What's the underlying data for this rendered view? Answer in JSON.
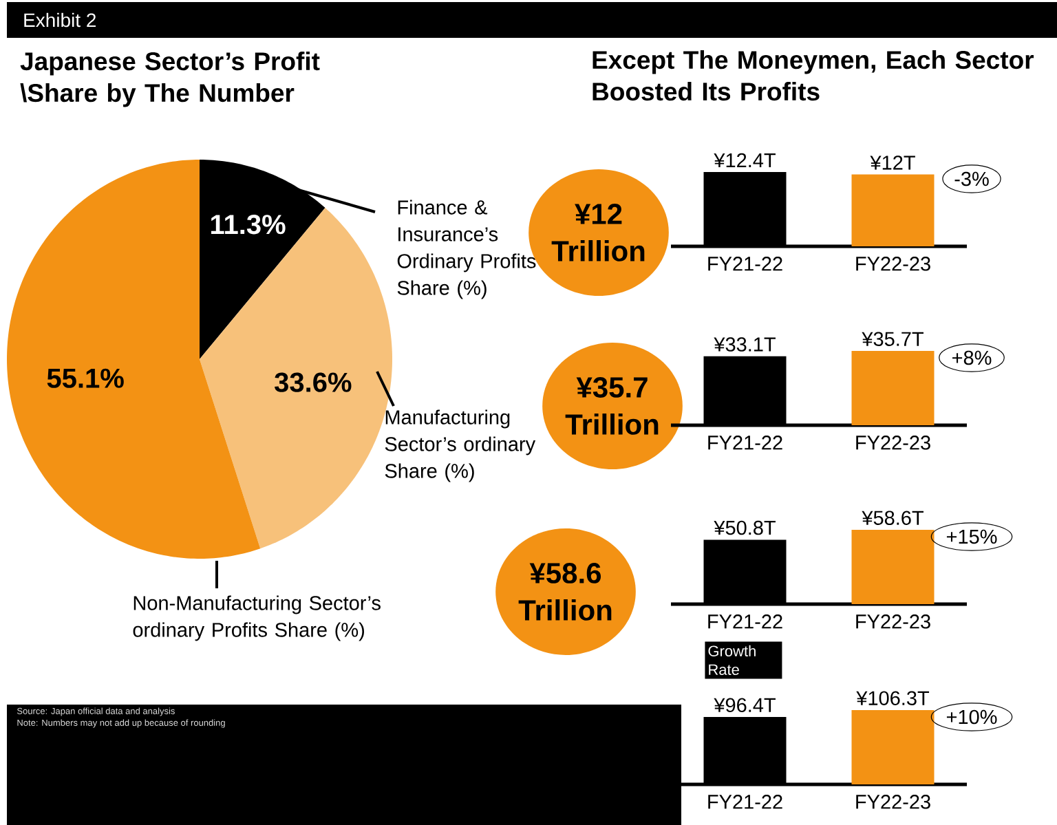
{
  "chart_data": [
    {
      "type": "pie",
      "title": "Japanese Sector’s Profit \\Share by The Number",
      "categories": [
        "Finance & Insurance’s Ordinary Profits Share (%)",
        "Manufacturing Sector’s ordinary Share (%)",
        "Non-Manufacturing Sector’s ordinary Profits Share (%)"
      ],
      "values": [
        11.3,
        33.6,
        55.1
      ],
      "value_labels": [
        "11.3%",
        "33.6%",
        "55.1%"
      ],
      "colors": [
        "#000000",
        "#f7c17a",
        "#f39214"
      ],
      "annotations": [
        "Exhibit 2",
        "Source: Japan official data and analysis",
        "Note: Numbers may not add up because of rounding"
      ]
    },
    {
      "type": "bar",
      "title": "Except The Moneymen, Each Sector Boosted Its Profits",
      "subtitle": "¥12 Trillion",
      "categories": [
        "FY21-22",
        "FY22-23"
      ],
      "values": [
        12.4,
        12
      ],
      "value_labels": [
        "¥12.4T",
        "¥12T"
      ],
      "colors": [
        "#000000",
        "#f39214"
      ],
      "annotations": [
        "-3%"
      ]
    },
    {
      "type": "bar",
      "subtitle": "¥35.7 Trillion",
      "categories": [
        "FY21-22",
        "FY22-23"
      ],
      "values": [
        33.1,
        35.7
      ],
      "value_labels": [
        "¥33.1T",
        "¥35.7T"
      ],
      "colors": [
        "#000000",
        "#f39214"
      ],
      "annotations": [
        "+8%"
      ]
    },
    {
      "type": "bar",
      "subtitle": "¥58.6 Trillion",
      "categories": [
        "FY21-22",
        "FY22-23"
      ],
      "values": [
        50.8,
        58.6
      ],
      "value_labels": [
        "¥50.8T",
        "¥58.6T"
      ],
      "colors": [
        "#000000",
        "#f39214"
      ],
      "annotations": [
        "+15%",
        "Growth Rate"
      ]
    },
    {
      "type": "bar",
      "categories": [
        "FY21-22",
        "FY22-23"
      ],
      "values": [
        96.4,
        106.3
      ],
      "value_labels": [
        "¥96.4T",
        "¥106.3T"
      ],
      "colors": [
        "#000000",
        "#f39214"
      ],
      "annotations": [
        "+10%"
      ]
    }
  ]
}
